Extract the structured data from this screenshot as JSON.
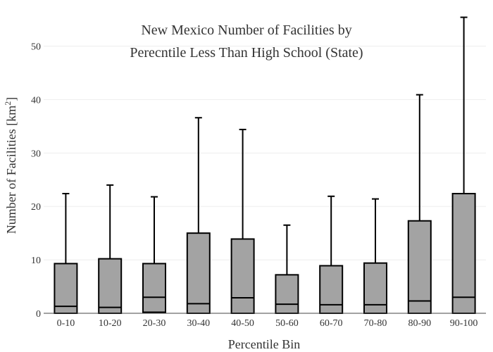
{
  "chart_data": {
    "type": "box",
    "title_lines": [
      "New Mexico Number of Facilities by",
      "Perecntile Less Than High School (State)"
    ],
    "xlabel": "Percentile Bin",
    "ylabel": "Number of Facilities  [km²]",
    "ylabel_main": "Number of Facilities  [km",
    "ylabel_sup": "2",
    "ylabel_end": "]",
    "ylim": [
      0,
      56
    ],
    "yticks": [
      0,
      10,
      20,
      30,
      40,
      50
    ],
    "grid": true,
    "categories": [
      "0-10",
      "10-20",
      "20-30",
      "30-40",
      "40-50",
      "50-60",
      "60-70",
      "70-80",
      "80-90",
      "90-100"
    ],
    "boxes": [
      {
        "min": 0,
        "q1": 0,
        "median": 1.3,
        "q3": 9.3,
        "max": 22.4
      },
      {
        "min": 0,
        "q1": 0,
        "median": 1.1,
        "q3": 10.2,
        "max": 24.0
      },
      {
        "min": 0,
        "q1": 0.2,
        "median": 3.0,
        "q3": 9.3,
        "max": 21.8
      },
      {
        "min": 0,
        "q1": 0,
        "median": 1.8,
        "q3": 15.0,
        "max": 36.6
      },
      {
        "min": 0,
        "q1": 0,
        "median": 2.9,
        "q3": 13.9,
        "max": 34.4
      },
      {
        "min": 0,
        "q1": 0,
        "median": 1.7,
        "q3": 7.2,
        "max": 16.5
      },
      {
        "min": 0,
        "q1": 0,
        "median": 1.6,
        "q3": 8.9,
        "max": 21.9
      },
      {
        "min": 0,
        "q1": 0,
        "median": 1.6,
        "q3": 9.4,
        "max": 21.4
      },
      {
        "min": 0,
        "q1": 0,
        "median": 2.3,
        "q3": 17.3,
        "max": 40.9
      },
      {
        "min": 0,
        "q1": 0,
        "median": 3.0,
        "q3": 22.4,
        "max": 55.4
      }
    ],
    "colors": {
      "box_fill": "#a3a3a3",
      "stroke": "#000000",
      "grid": "#eeeeee",
      "axis": "#444444"
    }
  }
}
